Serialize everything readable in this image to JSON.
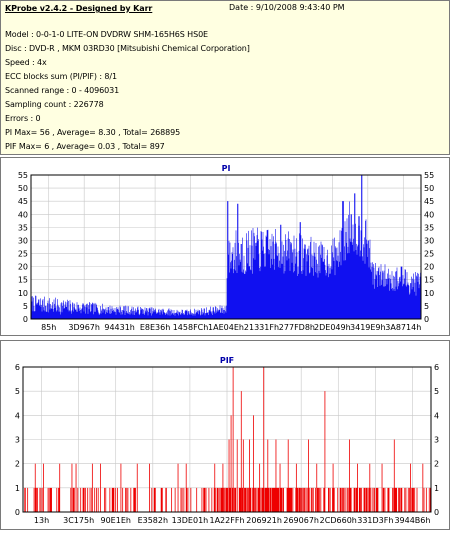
{
  "info": {
    "title": "KProbe v2.4.2 - Designed by Karr",
    "date": "Date : 9/10/2008 9:43:40 PM",
    "lines": [
      "Model : 0-0-1-0 LITE-ON DVDRW SHM-165H6S HS0E",
      "Disc : DVD-R , MKM 03RD30  [Mitsubishi Chemical Corporation]",
      "Speed : 4x",
      "ECC blocks sum (PI/PIF) : 8/1",
      "Scanned range : 0 - 4096031",
      "Sampling count : 226778",
      "Errors : 0",
      "PI Max= 56 , Average= 8.30 , Total= 268895",
      "PIF Max= 6 , Average= 0.03 , Total= 897"
    ]
  },
  "colors": {
    "bar": "#1010f0",
    "pif_bar": "#ee0000",
    "grid": "#c8c8c8",
    "axis": "#000000",
    "title": "#0000aa",
    "plot_bg": "#ffffff"
  },
  "chart_data": [
    {
      "type": "bar",
      "title": "PI",
      "ylim": [
        0,
        55
      ],
      "yticks": [
        0,
        5,
        10,
        15,
        20,
        25,
        30,
        35,
        40,
        45,
        50,
        55
      ],
      "xticks": [
        "85h",
        "3D967h",
        "94431h",
        "E8E36h",
        "1458FCh",
        "1AE04Eh",
        "21331Fh",
        "277FD8h",
        "2DE049h",
        "3419E9h",
        "3A8714h"
      ],
      "grid": true,
      "profile": [
        {
          "x": 0.0,
          "base": 5,
          "spread": 5
        },
        {
          "x": 0.06,
          "base": 4,
          "spread": 5
        },
        {
          "x": 0.2,
          "base": 3,
          "spread": 3
        },
        {
          "x": 0.4,
          "base": 2,
          "spread": 2
        },
        {
          "x": 0.5,
          "base": 3,
          "spread": 3
        },
        {
          "x": 0.505,
          "base": 20,
          "spread": 12
        },
        {
          "x": 0.52,
          "base": 22,
          "spread": 15
        },
        {
          "x": 0.6,
          "base": 24,
          "spread": 13
        },
        {
          "x": 0.7,
          "base": 22,
          "spread": 13
        },
        {
          "x": 0.76,
          "base": 20,
          "spread": 10
        },
        {
          "x": 0.8,
          "base": 24,
          "spread": 14
        },
        {
          "x": 0.82,
          "base": 34,
          "spread": 16
        },
        {
          "x": 0.86,
          "base": 26,
          "spread": 14
        },
        {
          "x": 0.88,
          "base": 15,
          "spread": 8
        },
        {
          "x": 1.0,
          "base": 12,
          "spread": 8
        }
      ],
      "spikes": [
        {
          "x": 0.505,
          "v": 45
        },
        {
          "x": 0.53,
          "v": 44
        },
        {
          "x": 0.64,
          "v": 36
        },
        {
          "x": 0.69,
          "v": 37
        },
        {
          "x": 0.8,
          "v": 45
        },
        {
          "x": 0.83,
          "v": 48
        },
        {
          "x": 0.848,
          "v": 55
        },
        {
          "x": 0.865,
          "v": 30
        },
        {
          "x": 0.95,
          "v": 20
        }
      ]
    },
    {
      "type": "bar",
      "title": "PIF",
      "ylim": [
        0,
        6
      ],
      "yticks": [
        0,
        1,
        2,
        3,
        4,
        5,
        6
      ],
      "xticks": [
        "13h",
        "3C175h",
        "90E1Eh",
        "E3582h",
        "13DE01h",
        "1A22FFh",
        "206921h",
        "269067h",
        "2CD660h",
        "331D3Fh",
        "3944B6h"
      ],
      "grid": true,
      "density": [
        {
          "x": 0.0,
          "p": 0.22
        },
        {
          "x": 0.45,
          "p": 0.2
        },
        {
          "x": 0.46,
          "p": 0.35
        },
        {
          "x": 0.52,
          "p": 0.7
        },
        {
          "x": 0.7,
          "p": 0.55
        },
        {
          "x": 0.85,
          "p": 0.45
        },
        {
          "x": 1.0,
          "p": 0.35
        }
      ],
      "spikes": [
        {
          "x": 0.03,
          "v": 2
        },
        {
          "x": 0.05,
          "v": 2
        },
        {
          "x": 0.09,
          "v": 2
        },
        {
          "x": 0.12,
          "v": 2
        },
        {
          "x": 0.13,
          "v": 2
        },
        {
          "x": 0.17,
          "v": 2
        },
        {
          "x": 0.19,
          "v": 2
        },
        {
          "x": 0.24,
          "v": 2
        },
        {
          "x": 0.28,
          "v": 2
        },
        {
          "x": 0.31,
          "v": 2
        },
        {
          "x": 0.38,
          "v": 2
        },
        {
          "x": 0.4,
          "v": 2
        },
        {
          "x": 0.47,
          "v": 2
        },
        {
          "x": 0.49,
          "v": 2
        },
        {
          "x": 0.505,
          "v": 3
        },
        {
          "x": 0.51,
          "v": 4
        },
        {
          "x": 0.515,
          "v": 6
        },
        {
          "x": 0.525,
          "v": 3
        },
        {
          "x": 0.535,
          "v": 5
        },
        {
          "x": 0.54,
          "v": 3
        },
        {
          "x": 0.555,
          "v": 3
        },
        {
          "x": 0.565,
          "v": 4
        },
        {
          "x": 0.58,
          "v": 2
        },
        {
          "x": 0.59,
          "v": 6
        },
        {
          "x": 0.6,
          "v": 3
        },
        {
          "x": 0.62,
          "v": 3
        },
        {
          "x": 0.63,
          "v": 2
        },
        {
          "x": 0.65,
          "v": 3
        },
        {
          "x": 0.67,
          "v": 2
        },
        {
          "x": 0.7,
          "v": 3
        },
        {
          "x": 0.72,
          "v": 2
        },
        {
          "x": 0.74,
          "v": 5
        },
        {
          "x": 0.76,
          "v": 2
        },
        {
          "x": 0.8,
          "v": 3
        },
        {
          "x": 0.82,
          "v": 2
        },
        {
          "x": 0.85,
          "v": 2
        },
        {
          "x": 0.88,
          "v": 2
        },
        {
          "x": 0.91,
          "v": 3
        },
        {
          "x": 0.95,
          "v": 2
        },
        {
          "x": 0.98,
          "v": 2
        }
      ]
    }
  ]
}
